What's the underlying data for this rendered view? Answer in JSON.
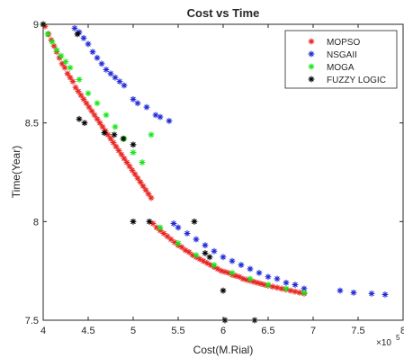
{
  "chart_data": {
    "type": "scatter",
    "title": "Cost vs Time",
    "xlabel": "Cost(M.Rial)",
    "ylabel": "Time(Year)",
    "xlim": [
      4,
      8
    ],
    "ylim": [
      7.5,
      9
    ],
    "x_exponent_label": "×10",
    "x_exponent_power": "5",
    "xticks": [
      4,
      4.5,
      5,
      5.5,
      6,
      6.5,
      7,
      7.5,
      8
    ],
    "xtick_labels": [
      "4",
      "4.5",
      "5",
      "5.5",
      "6",
      "6.5",
      "7",
      "7.5",
      "8"
    ],
    "yticks": [
      7.5,
      8,
      8.5,
      9
    ],
    "ytick_labels": [
      "7.5",
      "8",
      "8.5",
      "9"
    ],
    "grid": false,
    "legend_position": "top-right",
    "series": [
      {
        "name": "MOPSO",
        "color": "#e8231f",
        "marker": "asterisk",
        "x": [
          4.02,
          4.06,
          4.09,
          4.12,
          4.15,
          4.18,
          4.21,
          4.24,
          4.27,
          4.3,
          4.33,
          4.36,
          4.39,
          4.42,
          4.45,
          4.48,
          4.51,
          4.54,
          4.57,
          4.6,
          4.63,
          4.66,
          4.69,
          4.72,
          4.75,
          4.78,
          4.81,
          4.84,
          4.87,
          4.9,
          4.93,
          4.96,
          4.99,
          5.02,
          5.05,
          5.08,
          5.11,
          5.14,
          5.17,
          5.2,
          5.22,
          5.26,
          5.3,
          5.34,
          5.38,
          5.42,
          5.46,
          5.5,
          5.54,
          5.58,
          5.62,
          5.66,
          5.7,
          5.74,
          5.78,
          5.82,
          5.86,
          5.9,
          5.94,
          5.98,
          6.02,
          6.06,
          6.1,
          6.14,
          6.18,
          6.22,
          6.26,
          6.3,
          6.34,
          6.38,
          6.42,
          6.46,
          6.5,
          6.55,
          6.6,
          6.65,
          6.7,
          6.75,
          6.8,
          6.85,
          6.9
        ],
        "y": [
          8.99,
          8.95,
          8.92,
          8.89,
          8.86,
          8.83,
          8.8,
          8.78,
          8.75,
          8.73,
          8.71,
          8.68,
          8.66,
          8.64,
          8.62,
          8.6,
          8.58,
          8.56,
          8.54,
          8.52,
          8.5,
          8.48,
          8.46,
          8.44,
          8.42,
          8.4,
          8.38,
          8.36,
          8.34,
          8.32,
          8.3,
          8.28,
          8.26,
          8.24,
          8.22,
          8.2,
          8.18,
          8.16,
          8.14,
          8.12,
          7.99,
          7.97,
          7.955,
          7.94,
          7.925,
          7.91,
          7.895,
          7.88,
          7.87,
          7.855,
          7.845,
          7.83,
          7.82,
          7.81,
          7.8,
          7.79,
          7.78,
          7.77,
          7.76,
          7.75,
          7.745,
          7.74,
          7.73,
          7.725,
          7.72,
          7.71,
          7.705,
          7.7,
          7.695,
          7.69,
          7.685,
          7.68,
          7.675,
          7.67,
          7.665,
          7.66,
          7.655,
          7.65,
          7.645,
          7.64,
          7.635
        ]
      },
      {
        "name": "NSGAII",
        "color": "#1f2bd6",
        "marker": "asterisk",
        "x": [
          4.35,
          4.4,
          4.45,
          4.5,
          4.55,
          4.6,
          4.65,
          4.7,
          4.75,
          4.8,
          4.85,
          4.9,
          5.0,
          5.05,
          5.15,
          5.25,
          5.3,
          5.4,
          5.45,
          5.5,
          5.6,
          5.7,
          5.8,
          5.9,
          6.0,
          6.1,
          6.2,
          6.3,
          6.4,
          6.5,
          6.6,
          6.7,
          6.8,
          6.9,
          7.3,
          7.45,
          7.65,
          7.8
        ],
        "y": [
          8.98,
          8.96,
          8.93,
          8.9,
          8.86,
          8.83,
          8.8,
          8.77,
          8.75,
          8.73,
          8.71,
          8.69,
          8.62,
          8.6,
          8.58,
          8.54,
          8.53,
          8.51,
          7.99,
          7.97,
          7.94,
          7.91,
          7.88,
          7.85,
          7.82,
          7.8,
          7.78,
          7.76,
          7.74,
          7.72,
          7.71,
          7.69,
          7.68,
          7.66,
          7.65,
          7.64,
          7.635,
          7.63
        ]
      },
      {
        "name": "MOGA",
        "color": "#19e619",
        "marker": "asterisk",
        "x": [
          4.0,
          4.05,
          4.1,
          4.15,
          4.2,
          4.25,
          4.3,
          4.4,
          4.5,
          4.6,
          4.7,
          4.8,
          4.9,
          5.0,
          5.1,
          5.2,
          5.3,
          5.5,
          5.7,
          5.9,
          6.1,
          6.3,
          6.5,
          6.7,
          6.9
        ],
        "y": [
          9.0,
          8.95,
          8.91,
          8.87,
          8.84,
          8.81,
          8.78,
          8.72,
          8.65,
          8.6,
          8.54,
          8.48,
          8.42,
          8.35,
          8.3,
          8.44,
          7.97,
          7.89,
          7.83,
          7.78,
          7.74,
          7.71,
          7.68,
          7.66,
          7.64
        ]
      },
      {
        "name": "FUZZY LOGIC",
        "color": "#000000",
        "marker": "asterisk",
        "x": [
          4.0,
          4.38,
          4.4,
          4.46,
          4.68,
          4.79,
          4.89,
          5.0,
          5.0,
          5.18,
          5.68,
          5.8,
          5.85,
          6.0,
          6.02,
          6.35
        ],
        "y": [
          9.0,
          8.95,
          8.52,
          8.5,
          8.45,
          8.44,
          8.42,
          8.39,
          8.0,
          8.0,
          8.0,
          7.84,
          7.82,
          7.65,
          7.5,
          7.5
        ]
      }
    ]
  }
}
